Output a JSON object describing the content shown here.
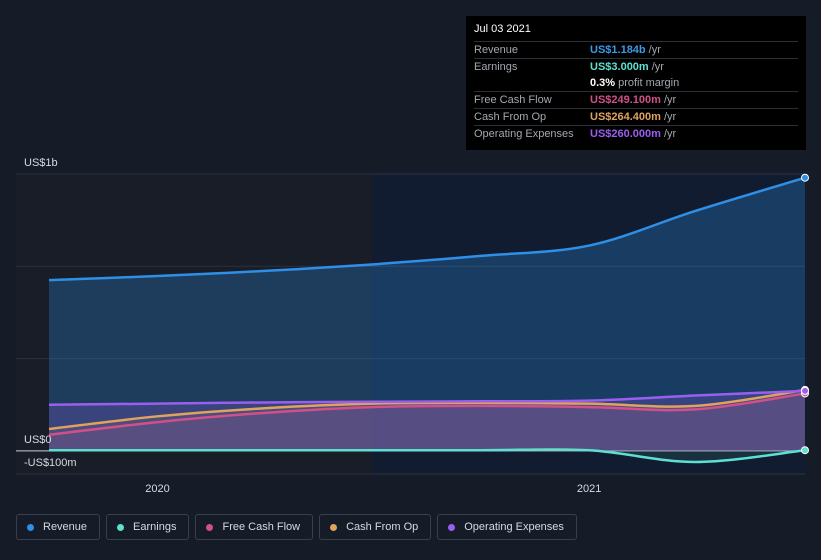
{
  "tooltip": {
    "date": "Jul 03 2021",
    "rows": [
      {
        "label": "Revenue",
        "value": "US$1.184b",
        "unit": "/yr",
        "color": "#3b9ae8"
      },
      {
        "label": "Earnings",
        "value": "US$3.000m",
        "unit": "/yr",
        "color": "#5fe0cf"
      },
      {
        "label": "Free Cash Flow",
        "value": "US$249.100m",
        "unit": "/yr",
        "color": "#d0508a"
      },
      {
        "label": "Cash From Op",
        "value": "US$264.400m",
        "unit": "/yr",
        "color": "#e0a35e"
      },
      {
        "label": "Operating Expenses",
        "value": "US$260.000m",
        "unit": "/yr",
        "color": "#9a5ff0"
      }
    ],
    "margin_value": "0.3%",
    "margin_label": "profit margin"
  },
  "legend": [
    {
      "label": "Revenue",
      "color": "#2f8fe6"
    },
    {
      "label": "Earnings",
      "color": "#5fe0cf"
    },
    {
      "label": "Free Cash Flow",
      "color": "#d0508a"
    },
    {
      "label": "Cash From Op",
      "color": "#e0a35e"
    },
    {
      "label": "Operating Expenses",
      "color": "#9a5ff0"
    }
  ],
  "chart_data": {
    "type": "area",
    "y_tick_labels": [
      "US$1b",
      "US$0",
      "-US$100m"
    ],
    "x_tick_labels": [
      "2020",
      "2021"
    ],
    "ylim": [
      -100,
      1200
    ],
    "x": [
      "2019-10-01",
      "2020-01-01",
      "2020-04-01",
      "2020-07-01",
      "2020-10-01",
      "2021-01-01",
      "2021-04-01",
      "2021-07-03"
    ],
    "series": [
      {
        "name": "Revenue",
        "color": "#2f8fe6",
        "values": [
          740,
          758,
          780,
          808,
          845,
          890,
          1040,
          1184
        ]
      },
      {
        "name": "Earnings",
        "color": "#5fe0cf",
        "values": [
          3,
          3,
          3,
          3,
          3,
          3,
          -48,
          3
        ]
      },
      {
        "name": "Free Cash Flow",
        "color": "#d0508a",
        "values": [
          70,
          125,
          165,
          190,
          195,
          190,
          180,
          249.1
        ]
      },
      {
        "name": "Cash From Op",
        "color": "#e0a35e",
        "values": [
          95,
          150,
          185,
          205,
          208,
          205,
          195,
          264.4
        ]
      },
      {
        "name": "Operating Expenses",
        "color": "#9a5ff0",
        "values": [
          200,
          205,
          210,
          213,
          215,
          218,
          240,
          260
        ]
      }
    ]
  }
}
